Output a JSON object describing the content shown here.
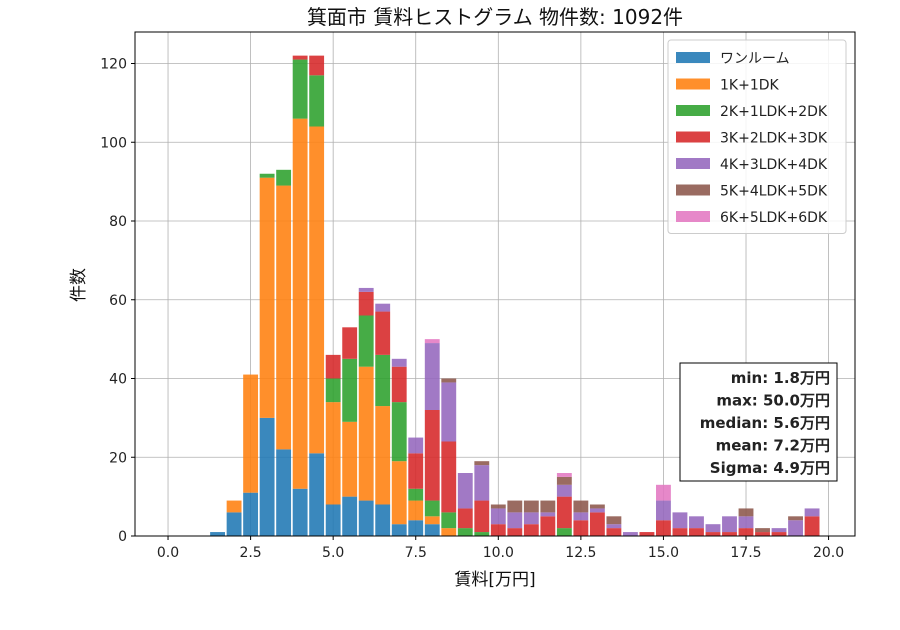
{
  "chart_data": {
    "type": "bar",
    "title": "箕面市 賃料ヒストグラム 物件数: 1092件",
    "xlabel": "賃料[万円]",
    "ylabel": "件数",
    "xlim": [
      -1.0,
      20.8
    ],
    "ylim": [
      0,
      128
    ],
    "x_ticks": [
      0.0,
      2.5,
      5.0,
      7.5,
      10.0,
      12.5,
      15.0,
      17.5,
      20.0
    ],
    "x_tick_labels": [
      "0.0",
      "2.5",
      "5.0",
      "7.5",
      "10.0",
      "12.5",
      "15.0",
      "17.5",
      "20.0"
    ],
    "y_ticks": [
      0,
      20,
      40,
      60,
      80,
      100,
      120
    ],
    "y_tick_labels": [
      "0",
      "20",
      "40",
      "60",
      "80",
      "100",
      "120"
    ],
    "grid": true,
    "legend_position": "top-right",
    "stacked": true,
    "bin_width": 0.5,
    "x": [
      1.5,
      2.0,
      2.5,
      3.0,
      3.5,
      4.0,
      4.5,
      5.0,
      5.5,
      6.0,
      6.5,
      7.0,
      7.5,
      8.0,
      8.5,
      9.0,
      9.5,
      10.0,
      10.5,
      11.0,
      11.5,
      12.0,
      12.5,
      13.0,
      13.5,
      14.0,
      14.5,
      15.0,
      15.5,
      16.0,
      16.5,
      17.0,
      17.5,
      18.0,
      18.5,
      19.0,
      19.5
    ],
    "series": [
      {
        "name": "ワンルーム",
        "color": "#1f77b4",
        "values": [
          1,
          6,
          11,
          30,
          22,
          12,
          21,
          8,
          10,
          9,
          8,
          3,
          4,
          3,
          0,
          0,
          0,
          0,
          0,
          0,
          0,
          0,
          0,
          0,
          0,
          0,
          0,
          0,
          0,
          0,
          0,
          0,
          0,
          0,
          0,
          0,
          0
        ]
      },
      {
        "name": "1K+1DK",
        "color": "#ff7f0e",
        "values": [
          0,
          3,
          30,
          61,
          67,
          94,
          83,
          26,
          19,
          34,
          25,
          16,
          5,
          2,
          2,
          0,
          0,
          0,
          0,
          0,
          0,
          0,
          0,
          0,
          0,
          0,
          0,
          0,
          0,
          0,
          0,
          0,
          0,
          0,
          0,
          0,
          0
        ]
      },
      {
        "name": "2K+1LDK+2DK",
        "color": "#2ca02c",
        "values": [
          0,
          0,
          0,
          1,
          4,
          15,
          13,
          6,
          16,
          13,
          13,
          15,
          3,
          4,
          4,
          2,
          1,
          0,
          0,
          0,
          0,
          2,
          0,
          0,
          0,
          0,
          0,
          0,
          0,
          0,
          0,
          0,
          0,
          0,
          0,
          0,
          0
        ]
      },
      {
        "name": "3K+2LDK+3DK",
        "color": "#d62728",
        "values": [
          0,
          0,
          0,
          0,
          0,
          1,
          5,
          6,
          8,
          6,
          11,
          9,
          9,
          23,
          18,
          5,
          8,
          3,
          2,
          3,
          5,
          8,
          4,
          6,
          2,
          0,
          1,
          4,
          2,
          2,
          1,
          1,
          2,
          1,
          1,
          0,
          5
        ]
      },
      {
        "name": "4K+3LDK+4DK",
        "color": "#9467bd",
        "values": [
          0,
          0,
          0,
          0,
          0,
          0,
          0,
          0,
          0,
          1,
          2,
          2,
          4,
          17,
          15,
          9,
          9,
          4,
          4,
          3,
          1,
          3,
          2,
          1,
          1,
          1,
          0,
          5,
          4,
          3,
          2,
          4,
          3,
          0,
          1,
          4,
          2
        ]
      },
      {
        "name": "5K+4LDK+5DK",
        "color": "#8c564b",
        "values": [
          0,
          0,
          0,
          0,
          0,
          0,
          0,
          0,
          0,
          0,
          0,
          0,
          0,
          0,
          1,
          0,
          1,
          1,
          3,
          3,
          3,
          2,
          3,
          1,
          2,
          0,
          0,
          0,
          0,
          0,
          0,
          0,
          2,
          1,
          0,
          1,
          0
        ]
      },
      {
        "name": "6K+5LDK+6DK",
        "color": "#e377c2",
        "values": [
          0,
          0,
          0,
          0,
          0,
          0,
          0,
          0,
          0,
          0,
          0,
          0,
          0,
          1,
          0,
          0,
          0,
          0,
          0,
          0,
          0,
          1,
          0,
          0,
          0,
          0,
          0,
          4,
          0,
          0,
          0,
          0,
          0,
          0,
          0,
          0,
          0
        ]
      }
    ],
    "annotations": [
      "min: 1.8万円",
      "max: 50.0万円",
      "median: 5.6万円",
      "mean: 7.2万円",
      "Sigma: 4.9万円"
    ]
  }
}
